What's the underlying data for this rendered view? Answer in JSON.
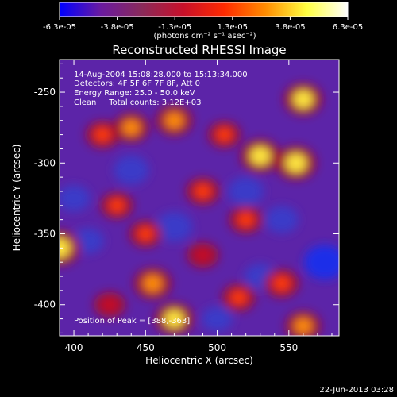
{
  "colorbar": {
    "ticks": [
      "-6.3e-05",
      "-3.8e-05",
      "-1.3e-05",
      "1.3e-05",
      "3.8e-05",
      "6.3e-05"
    ],
    "unit_label": "(photons cm⁻² s⁻¹ asec⁻²)",
    "gradient": [
      "#0000ff",
      "#6a1aa0",
      "#8a2a5a",
      "#c8102a",
      "#ff2a00",
      "#ff8c00",
      "#ffff40",
      "#ffffff"
    ]
  },
  "annotations": {
    "time": "14-Aug-2004 15:08:28.000 to 15:13:34.000",
    "detectors": "Detectors: 4F 5F 6F 7F 8F, Att 0",
    "energy": "Energy Range: 25.0 - 50.0 keV",
    "clean": "Clean     Total counts: 3.12E+03",
    "peak": "Position of Peak = [388,-363]"
  },
  "footer_date": "22-Jun-2013 03:28",
  "chart_data": {
    "type": "heatmap",
    "title": "Reconstructed RHESSI Image",
    "xlabel": "Heliocentric X (arcsec)",
    "ylabel": "Heliocentric Y (arcsec)",
    "xlim": [
      390,
      585
    ],
    "ylim": [
      -422,
      -227
    ],
    "xticks": [
      400,
      450,
      500,
      550
    ],
    "yticks": [
      -250,
      -300,
      -350,
      -400
    ],
    "colorbar_range": [
      -6.3e-05,
      6.3e-05
    ],
    "peak_position": [
      388,
      -363
    ],
    "hot_spots": [
      {
        "x": 560,
        "y": -255,
        "level": 0.85
      },
      {
        "x": 555,
        "y": -300,
        "level": 0.95
      },
      {
        "x": 530,
        "y": -295,
        "level": 0.9
      },
      {
        "x": 470,
        "y": -270,
        "level": 0.75
      },
      {
        "x": 440,
        "y": -275,
        "level": 0.7
      },
      {
        "x": 420,
        "y": -280,
        "level": 0.6
      },
      {
        "x": 505,
        "y": -280,
        "level": 0.55
      },
      {
        "x": 490,
        "y": -320,
        "level": 0.6
      },
      {
        "x": 430,
        "y": -330,
        "level": 0.55
      },
      {
        "x": 520,
        "y": -340,
        "level": 0.6
      },
      {
        "x": 450,
        "y": -350,
        "level": 0.55
      },
      {
        "x": 390,
        "y": -360,
        "level": 1.0
      },
      {
        "x": 455,
        "y": -385,
        "level": 0.8
      },
      {
        "x": 470,
        "y": -410,
        "level": 0.85
      },
      {
        "x": 515,
        "y": -395,
        "level": 0.6
      },
      {
        "x": 545,
        "y": -385,
        "level": 0.65
      },
      {
        "x": 560,
        "y": -415,
        "level": 0.7
      },
      {
        "x": 425,
        "y": -400,
        "level": 0.5
      },
      {
        "x": 490,
        "y": -365,
        "level": 0.5
      }
    ],
    "cold_spots": [
      {
        "x": 575,
        "y": -370,
        "level": -1.0
      },
      {
        "x": 440,
        "y": -305,
        "level": -0.7
      },
      {
        "x": 520,
        "y": -320,
        "level": -0.7
      },
      {
        "x": 470,
        "y": -345,
        "level": -0.75
      },
      {
        "x": 545,
        "y": -340,
        "level": -0.6
      },
      {
        "x": 410,
        "y": -355,
        "level": -0.5
      },
      {
        "x": 400,
        "y": -325,
        "level": -0.55
      },
      {
        "x": 530,
        "y": -380,
        "level": -0.5
      },
      {
        "x": 500,
        "y": -410,
        "level": -0.45
      }
    ]
  }
}
